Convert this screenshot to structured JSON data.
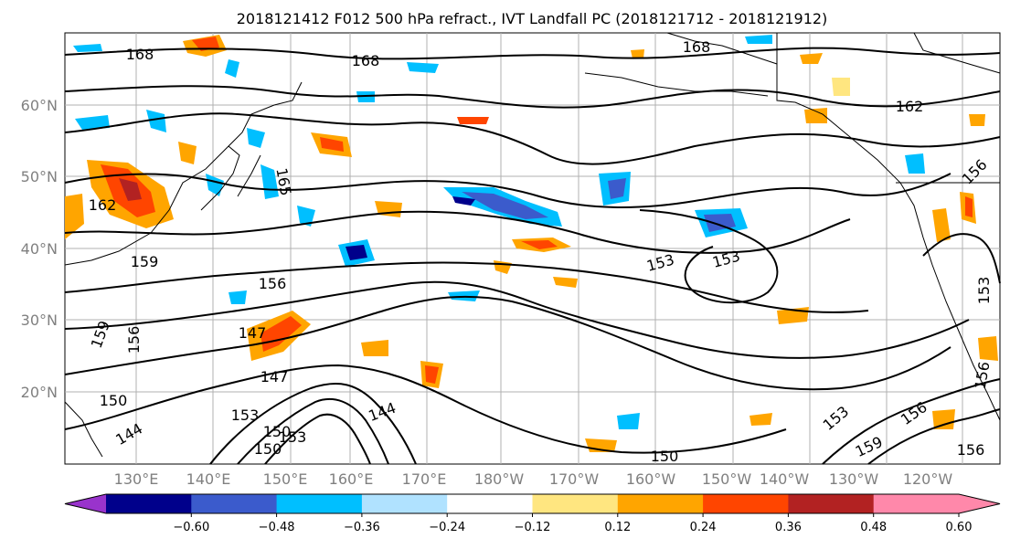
{
  "title": "2018121412 F012 500 hPa refract., IVT Landfall PC (2018121712 - 2018121912)",
  "map": {
    "lat_ticks": [
      "60°N",
      "50°N",
      "40°N",
      "30°N",
      "20°N"
    ],
    "lon_ticks": [
      "130°E",
      "140°E",
      "150°E",
      "160°E",
      "170°E",
      "180°W",
      "170°W",
      "160°W",
      "150°W",
      "140°W",
      "130°W",
      "120°W"
    ],
    "contour_labels": [
      "168",
      "168",
      "168",
      "162",
      "165",
      "162",
      "159",
      "156",
      "159",
      "156",
      "147",
      "147",
      "150",
      "144",
      "153",
      "150",
      "153",
      "150",
      "144",
      "153",
      "153",
      "150",
      "153",
      "159",
      "156",
      "156",
      "156",
      "153",
      "156"
    ]
  },
  "colorbar": {
    "ticks": [
      "−0.60",
      "−0.48",
      "−0.36",
      "−0.24",
      "−0.12",
      "0.12",
      "0.24",
      "0.36",
      "0.48",
      "0.60"
    ],
    "colors": [
      "#9933cc",
      "#00008b",
      "#3b5bcc",
      "#00bfff",
      "#b0e2ff",
      "#ffffff",
      "#ffe680",
      "#ffa500",
      "#ff4500",
      "#b22222",
      "#ff88aa",
      "#ff88aa"
    ]
  }
}
